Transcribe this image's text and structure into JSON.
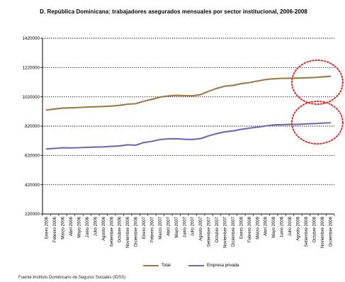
{
  "chart_data": {
    "type": "line",
    "title": "D. República Dominicana: trabajadores asegurados mensuales por sector institucional, 2006-2008",
    "xlabel": "",
    "ylabel": "",
    "ylim": [
      220000,
      1420000
    ],
    "yticks": [
      "220000",
      "420000",
      "620000",
      "820000",
      "1020000",
      "1220000",
      "1420000"
    ],
    "grid": "horizontal-dotted",
    "legend_position": "bottom",
    "categories": [
      "Enero 2006",
      "Febrero 2006",
      "Marzo 2006",
      "Abril 2006",
      "Mayo 2006",
      "Junio 2006",
      "Julio 2006",
      "Agosto 2006",
      "Setiembre 2006",
      "Octubre 2006",
      "Noviembre 2006",
      "Diciembre 2006",
      "Enero 2007",
      "Febrero 2007",
      "Marzo 2007",
      "Abril 2007",
      "Mayo 2007",
      "Junio 2007",
      "Julio 2007",
      "Agosto 2007",
      "Setiembre 2007",
      "Octubre 2007",
      "Noviembre 2007",
      "Diciembre 2007",
      "Enero 2008",
      "Febrero 2008",
      "Marzo 2008",
      "Abril 2008",
      "Mayo 2008",
      "Junio 2008",
      "Julio 2008",
      "Agosto 2008",
      "Setiembre 2008",
      "Octubre 2008",
      "Noviembre 2008",
      "Diciembre 2008"
    ],
    "series": [
      {
        "name": "Total",
        "color": "#9c7a45",
        "values": [
          930000,
          937000,
          943000,
          945000,
          947000,
          950000,
          952000,
          954000,
          957000,
          962000,
          970000,
          973000,
          990000,
          1003000,
          1018000,
          1026000,
          1030000,
          1028000,
          1027000,
          1035000,
          1058000,
          1078000,
          1093000,
          1098000,
          1110000,
          1117000,
          1128000,
          1138000,
          1143000,
          1146000,
          1147000,
          1148000,
          1150000,
          1152000,
          1156000,
          1160000
        ]
      },
      {
        "name": "Empresa privada",
        "color": "#7468b0",
        "values": [
          664000,
          668000,
          672000,
          671000,
          673000,
          675000,
          677000,
          678000,
          682000,
          685000,
          692000,
          690000,
          708000,
          716000,
          728000,
          733000,
          734000,
          730000,
          729000,
          735000,
          754000,
          769000,
          781000,
          787000,
          798000,
          806000,
          813000,
          821000,
          828000,
          830000,
          832000,
          832000,
          835000,
          838000,
          840000,
          843000
        ]
      }
    ],
    "annotations": [
      "red-dotted-ellipse-upper-right",
      "red-dotted-ellipse-lower-right"
    ],
    "annotation_color": "#e0302a"
  },
  "source_text": "Fuente:Instituto Dominicano de Seguros Sociales (IDSS)"
}
